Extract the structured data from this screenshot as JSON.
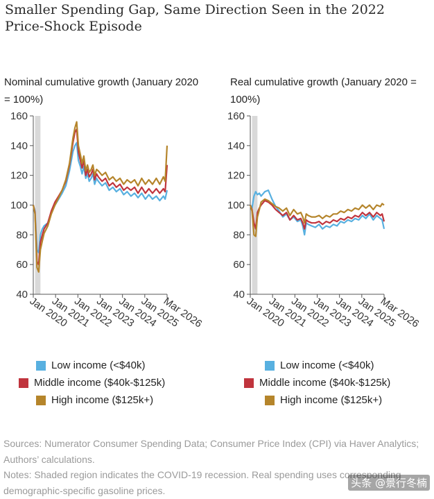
{
  "title": "Smaller Spending Gap, Same Direction Seen in the 2022 Price-Shock Episode",
  "colors": {
    "low": "#58b0e0",
    "middle": "#c0343d",
    "high": "#b5852b",
    "recession": "#d9d9d9"
  },
  "chart_data": [
    {
      "type": "line",
      "title": "Nominal cumulative growth (January 2020 = 100%)",
      "ylim": [
        40,
        160
      ],
      "yticks": [
        "40",
        "60",
        "80",
        "100",
        "120",
        "140",
        "160"
      ],
      "xlim": [
        2020.0,
        2026.17
      ],
      "xticks": [
        "Jan 2020",
        "Jan 2021",
        "Jan 2022",
        "Jan 2023",
        "Jan 2024",
        "Jan 2025",
        "Mar 2026"
      ],
      "recession": [
        2020.08,
        2020.33
      ],
      "grid": false,
      "series": [
        {
          "name": "Low income (<$40k)",
          "color": "low",
          "x": [
            2020.0,
            2020.08,
            2020.17,
            2020.25,
            2020.33,
            2020.42,
            2020.5,
            2020.67,
            2020.83,
            2021.0,
            2021.17,
            2021.33,
            2021.5,
            2021.67,
            2021.83,
            2021.92,
            2022.0,
            2022.08,
            2022.17,
            2022.25,
            2022.33,
            2022.42,
            2022.5,
            2022.58,
            2022.67,
            2022.75,
            2022.83,
            2022.92,
            2023.0,
            2023.17,
            2023.33,
            2023.5,
            2023.67,
            2023.83,
            2024.0,
            2024.17,
            2024.33,
            2024.5,
            2024.67,
            2024.83,
            2025.0,
            2025.17,
            2025.33,
            2025.5,
            2025.67,
            2025.83,
            2026.0,
            2026.08,
            2026.17
          ],
          "y": [
            100,
            96,
            70,
            68,
            80,
            84,
            86,
            88,
            95,
            100,
            104,
            108,
            113,
            123,
            136,
            140,
            142,
            130,
            126,
            121,
            126,
            118,
            121,
            116,
            118,
            121,
            114,
            118,
            116,
            113,
            115,
            110,
            112,
            109,
            111,
            107,
            109,
            106,
            108,
            105,
            108,
            104,
            107,
            104,
            106,
            103,
            106,
            104,
            110
          ]
        },
        {
          "name": "Middle income ($40k-$125k)",
          "color": "middle",
          "x": [
            2020.0,
            2020.08,
            2020.17,
            2020.25,
            2020.33,
            2020.42,
            2020.5,
            2020.67,
            2020.83,
            2021.0,
            2021.17,
            2021.33,
            2021.5,
            2021.67,
            2021.83,
            2021.92,
            2022.0,
            2022.08,
            2022.17,
            2022.25,
            2022.33,
            2022.42,
            2022.5,
            2022.58,
            2022.67,
            2022.75,
            2022.83,
            2022.92,
            2023.0,
            2023.17,
            2023.33,
            2023.5,
            2023.67,
            2023.83,
            2024.0,
            2024.17,
            2024.33,
            2024.5,
            2024.67,
            2024.83,
            2025.0,
            2025.17,
            2025.33,
            2025.5,
            2025.67,
            2025.83,
            2026.0,
            2026.08,
            2026.17
          ],
          "y": [
            100,
            95,
            62,
            60,
            75,
            80,
            84,
            88,
            96,
            102,
            106,
            110,
            116,
            127,
            142,
            149,
            151,
            136,
            130,
            125,
            130,
            120,
            124,
            119,
            121,
            124,
            117,
            121,
            119,
            116,
            118,
            113,
            115,
            112,
            114,
            110,
            112,
            110,
            112,
            108,
            112,
            108,
            111,
            108,
            111,
            108,
            111,
            109,
            127
          ]
        },
        {
          "name": "High income ($125k+)",
          "color": "high",
          "x": [
            2020.0,
            2020.08,
            2020.17,
            2020.25,
            2020.33,
            2020.42,
            2020.5,
            2020.67,
            2020.83,
            2021.0,
            2021.17,
            2021.33,
            2021.5,
            2021.67,
            2021.83,
            2021.92,
            2022.0,
            2022.08,
            2022.17,
            2022.25,
            2022.33,
            2022.42,
            2022.5,
            2022.58,
            2022.67,
            2022.75,
            2022.83,
            2022.92,
            2023.0,
            2023.17,
            2023.33,
            2023.5,
            2023.67,
            2023.83,
            2024.0,
            2024.17,
            2024.33,
            2024.5,
            2024.67,
            2024.83,
            2025.0,
            2025.17,
            2025.33,
            2025.5,
            2025.67,
            2025.83,
            2026.0,
            2026.08,
            2026.17
          ],
          "y": [
            100,
            94,
            58,
            55,
            70,
            76,
            81,
            86,
            94,
            100,
            105,
            110,
            117,
            128,
            145,
            152,
            156,
            140,
            134,
            128,
            133,
            123,
            127,
            122,
            124,
            127,
            120,
            124,
            123,
            120,
            122,
            117,
            119,
            116,
            118,
            114,
            117,
            115,
            117,
            113,
            118,
            114,
            117,
            114,
            118,
            114,
            119,
            116,
            140
          ]
        }
      ]
    },
    {
      "type": "line",
      "title": "Real cumulative growth (January 2020 = 100%)",
      "ylim": [
        40,
        160
      ],
      "yticks": [
        "40",
        "60",
        "80",
        "100",
        "120",
        "140",
        "160"
      ],
      "xlim": [
        2020.0,
        2026.17
      ],
      "xticks": [
        "Jan 2020",
        "Jan 2021",
        "Jan 2022",
        "Jan 2023",
        "Jan 2024",
        "Jan 2025",
        "Mar 2026"
      ],
      "recession": [
        2020.08,
        2020.33
      ],
      "grid": false,
      "series": [
        {
          "name": "Low income (<$40k)",
          "color": "low",
          "x": [
            2020.0,
            2020.08,
            2020.17,
            2020.25,
            2020.33,
            2020.42,
            2020.5,
            2020.67,
            2020.83,
            2021.0,
            2021.17,
            2021.33,
            2021.5,
            2021.67,
            2021.83,
            2022.0,
            2022.17,
            2022.33,
            2022.42,
            2022.5,
            2022.58,
            2022.67,
            2022.83,
            2023.0,
            2023.17,
            2023.33,
            2023.5,
            2023.67,
            2023.83,
            2024.0,
            2024.17,
            2024.33,
            2024.5,
            2024.67,
            2024.83,
            2025.0,
            2025.17,
            2025.33,
            2025.5,
            2025.67,
            2025.83,
            2026.0,
            2026.08,
            2026.17
          ],
          "y": [
            100,
            98,
            106,
            109,
            107,
            108,
            106,
            109,
            110,
            104,
            99,
            96,
            92,
            94,
            90,
            92,
            89,
            90,
            86,
            80,
            88,
            87,
            86,
            85,
            87,
            84,
            86,
            85,
            87,
            86,
            89,
            88,
            90,
            89,
            91,
            90,
            93,
            91,
            94,
            90,
            93,
            91,
            90,
            84
          ]
        },
        {
          "name": "Middle income ($40k-$125k)",
          "color": "middle",
          "x": [
            2020.0,
            2020.08,
            2020.17,
            2020.25,
            2020.33,
            2020.42,
            2020.5,
            2020.67,
            2020.83,
            2021.0,
            2021.17,
            2021.33,
            2021.5,
            2021.67,
            2021.83,
            2022.0,
            2022.17,
            2022.33,
            2022.42,
            2022.5,
            2022.58,
            2022.67,
            2022.83,
            2023.0,
            2023.17,
            2023.33,
            2023.5,
            2023.67,
            2023.83,
            2024.0,
            2024.17,
            2024.33,
            2024.5,
            2024.67,
            2024.83,
            2025.0,
            2025.17,
            2025.33,
            2025.5,
            2025.67,
            2025.83,
            2026.0,
            2026.08,
            2026.17
          ],
          "y": [
            100,
            97,
            88,
            84,
            95,
            98,
            100,
            103,
            102,
            100,
            97,
            95,
            93,
            95,
            90,
            93,
            90,
            91,
            88,
            84,
            90,
            89,
            88,
            88,
            89,
            87,
            89,
            88,
            90,
            89,
            91,
            90,
            92,
            91,
            93,
            92,
            95,
            93,
            95,
            92,
            95,
            93,
            94,
            89
          ]
        },
        {
          "name": "High income ($125k+)",
          "color": "high",
          "x": [
            2020.0,
            2020.08,
            2020.17,
            2020.25,
            2020.33,
            2020.42,
            2020.5,
            2020.67,
            2020.83,
            2021.0,
            2021.17,
            2021.33,
            2021.5,
            2021.67,
            2021.83,
            2022.0,
            2022.17,
            2022.33,
            2022.42,
            2022.5,
            2022.58,
            2022.67,
            2022.83,
            2023.0,
            2023.17,
            2023.33,
            2023.5,
            2023.67,
            2023.83,
            2024.0,
            2024.17,
            2024.33,
            2024.5,
            2024.67,
            2024.83,
            2025.0,
            2025.17,
            2025.33,
            2025.5,
            2025.67,
            2025.83,
            2026.0,
            2026.08,
            2026.17
          ],
          "y": [
            100,
            96,
            80,
            79,
            92,
            97,
            102,
            104,
            103,
            101,
            99,
            98,
            96,
            98,
            93,
            97,
            94,
            95,
            92,
            88,
            94,
            93,
            92,
            92,
            93,
            91,
            93,
            92,
            94,
            94,
            96,
            95,
            97,
            96,
            98,
            97,
            100,
            98,
            100,
            97,
            100,
            99,
            101,
            100
          ]
        }
      ]
    }
  ],
  "legend": {
    "items": [
      {
        "label": "Low income (<$40k)",
        "color": "low"
      },
      {
        "label": "Middle income ($40k-$125k)",
        "color": "middle"
      },
      {
        "label": "High income ($125k+)",
        "color": "high"
      }
    ]
  },
  "footer": {
    "sources": "Sources: Numerator Consumer Spending Data; Consumer Price Index (CPI) via Haver Analytics; Authors’ calculations.",
    "notes": "Notes: Shaded region indicates the COVID-19 recession. Real spending uses corresponding demographic-specific gasoline prices."
  },
  "watermark": "头条 @景行冬楠"
}
